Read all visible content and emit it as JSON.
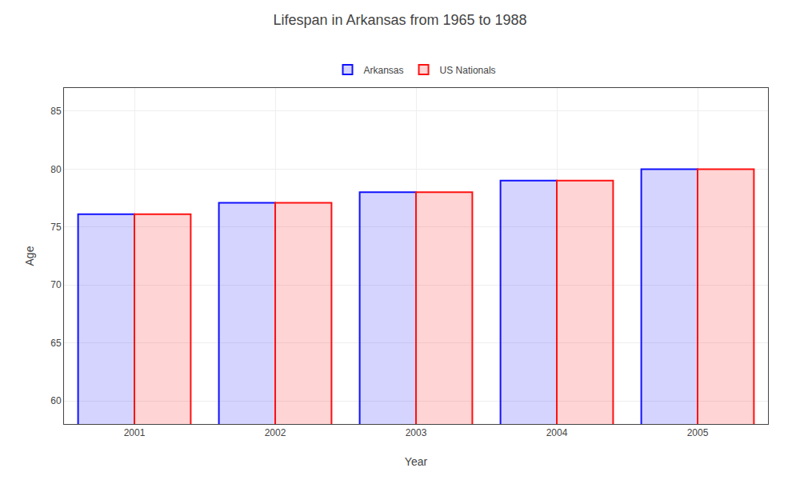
{
  "chart_data": {
    "type": "bar",
    "title": "Lifespan in Arkansas from 1965 to 1988",
    "xlabel": "Year",
    "ylabel": "Age",
    "categories": [
      "2001",
      "2002",
      "2003",
      "2004",
      "2005"
    ],
    "series": [
      {
        "name": "Arkansas",
        "color": "#1111ff",
        "values": [
          76.1,
          77.1,
          78.0,
          79.0,
          80.0
        ]
      },
      {
        "name": "US Nationals",
        "color": "#ff1111",
        "values": [
          76.1,
          77.1,
          78.0,
          79.0,
          80.0
        ]
      }
    ],
    "ylim": [
      58,
      87
    ],
    "yticks": [
      60,
      65,
      70,
      75,
      80,
      85
    ],
    "grid": true,
    "legend": "top"
  }
}
